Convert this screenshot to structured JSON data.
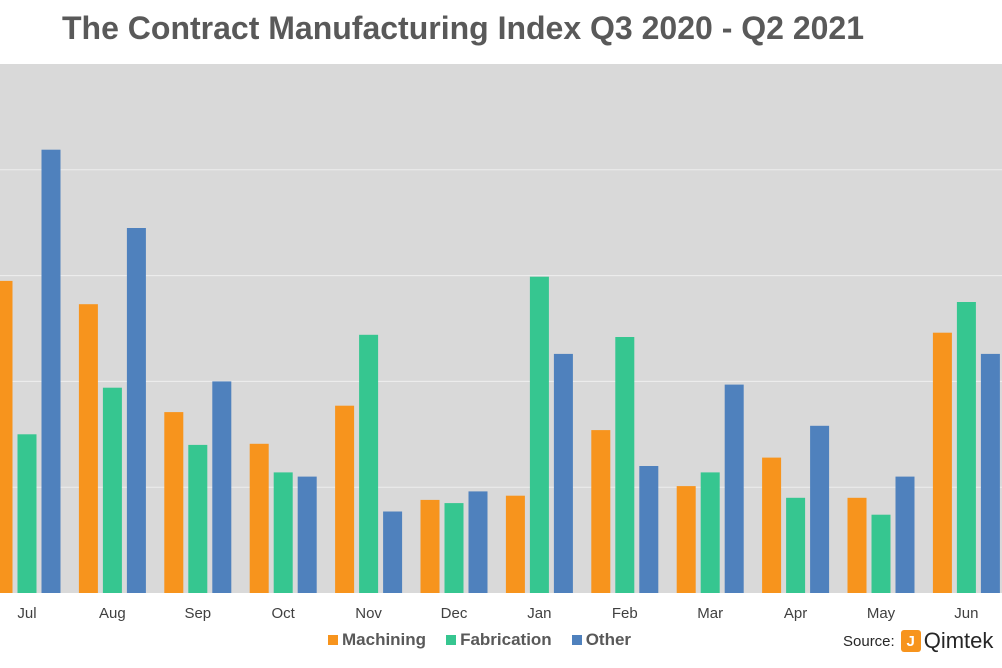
{
  "title": "The Contract Manufacturing Index Q3 2020 - Q2 2021",
  "chart_data": {
    "type": "bar",
    "title": "The Contract Manufacturing Index Q3 2020 - Q2 2021",
    "categories": [
      "Jul",
      "Aug",
      "Sep",
      "Oct",
      "Nov",
      "Dec",
      "Jan",
      "Feb",
      "Mar",
      "Apr",
      "May",
      "Jun"
    ],
    "series": [
      {
        "name": "Machining",
        "color": "#f7941d",
        "values": [
          295,
          273,
          171,
          141,
          177,
          88,
          92,
          154,
          101,
          128,
          90,
          246
        ]
      },
      {
        "name": "Fabrication",
        "color": "#36c690",
        "values": [
          150,
          194,
          140,
          114,
          244,
          85,
          299,
          242,
          114,
          90,
          74,
          275
        ]
      },
      {
        "name": "Other",
        "color": "#4f81bd",
        "values": [
          419,
          345,
          200,
          110,
          77,
          96,
          226,
          120,
          197,
          158,
          110,
          226
        ]
      }
    ],
    "ylim": [
      0,
      500
    ],
    "grid": true,
    "legend": "bottom"
  },
  "source": {
    "label": "Source:",
    "logo_mark": "J",
    "logo_text": "Qimtek"
  }
}
